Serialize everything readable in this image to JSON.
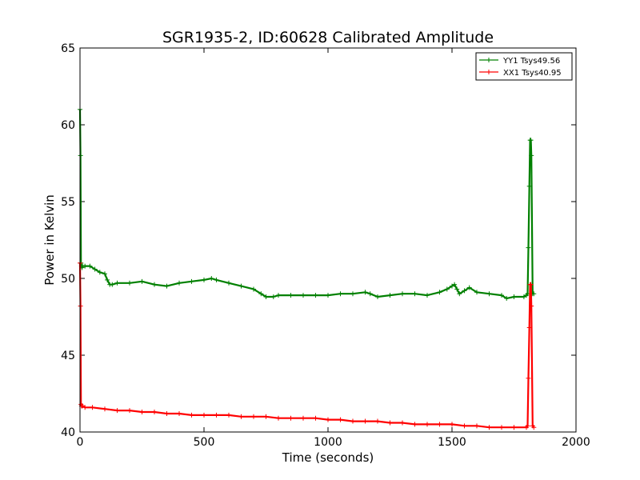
{
  "chart_data": {
    "type": "line",
    "title": "SGR1935-2, ID:60628 Calibrated Amplitude",
    "xlabel": "Time (seconds)",
    "ylabel": "Power in Kelvin",
    "xlim": [
      0,
      2000
    ],
    "ylim": [
      40,
      65
    ],
    "xticks": [
      0,
      500,
      1000,
      1500,
      2000
    ],
    "yticks": [
      40,
      45,
      50,
      55,
      60,
      65
    ],
    "grid": false,
    "legend_position": "top-right",
    "marker": "+",
    "series": [
      {
        "name": "YY1 Tsys49.56",
        "color": "#008000",
        "x": [
          0,
          2,
          4,
          6,
          8,
          10,
          20,
          40,
          60,
          80,
          100,
          110,
          120,
          130,
          150,
          200,
          250,
          300,
          350,
          400,
          450,
          500,
          530,
          550,
          600,
          650,
          700,
          730,
          750,
          780,
          800,
          850,
          900,
          950,
          1000,
          1050,
          1100,
          1150,
          1170,
          1200,
          1250,
          1300,
          1350,
          1400,
          1450,
          1480,
          1500,
          1510,
          1520,
          1530,
          1550,
          1570,
          1600,
          1650,
          1700,
          1720,
          1750,
          1790,
          1800,
          1805,
          1808,
          1812,
          1815,
          1818,
          1820,
          1825,
          1830
        ],
        "y": [
          61,
          58,
          51,
          50.8,
          50.7,
          50.8,
          50.8,
          50.8,
          50.6,
          50.4,
          50.3,
          49.9,
          49.6,
          49.6,
          49.7,
          49.7,
          49.8,
          49.6,
          49.5,
          49.7,
          49.8,
          49.9,
          50.0,
          49.9,
          49.7,
          49.5,
          49.3,
          49.0,
          48.8,
          48.8,
          48.9,
          48.9,
          48.9,
          48.9,
          48.9,
          49.0,
          49.0,
          49.1,
          49.0,
          48.8,
          48.9,
          49.0,
          49.0,
          48.9,
          49.1,
          49.3,
          49.5,
          49.6,
          49.3,
          49.0,
          49.2,
          49.4,
          49.1,
          49.0,
          48.9,
          48.7,
          48.8,
          48.8,
          48.9,
          49.0,
          52,
          56,
          59,
          59,
          58,
          49,
          49
        ]
      },
      {
        "name": "XX1 Tsys40.95",
        "color": "#ff0000",
        "x": [
          0,
          2,
          4,
          6,
          8,
          10,
          20,
          50,
          100,
          150,
          200,
          250,
          300,
          350,
          400,
          450,
          500,
          550,
          600,
          650,
          700,
          750,
          800,
          850,
          900,
          950,
          1000,
          1050,
          1100,
          1150,
          1200,
          1250,
          1300,
          1350,
          1400,
          1450,
          1500,
          1550,
          1600,
          1650,
          1700,
          1750,
          1800,
          1805,
          1808,
          1812,
          1815,
          1818,
          1820,
          1825,
          1830
        ],
        "y": [
          51,
          48.2,
          41.8,
          41.7,
          41.7,
          41.7,
          41.6,
          41.6,
          41.5,
          41.4,
          41.4,
          41.3,
          41.3,
          41.2,
          41.2,
          41.1,
          41.1,
          41.1,
          41.1,
          41.0,
          41.0,
          41.0,
          40.9,
          40.9,
          40.9,
          40.9,
          40.8,
          40.8,
          40.7,
          40.7,
          40.7,
          40.6,
          40.6,
          40.5,
          40.5,
          40.5,
          40.5,
          40.4,
          40.4,
          40.3,
          40.3,
          40.3,
          40.3,
          40.4,
          43.5,
          46.8,
          49.6,
          49.6,
          48.2,
          40.4,
          40.3
        ]
      }
    ]
  }
}
